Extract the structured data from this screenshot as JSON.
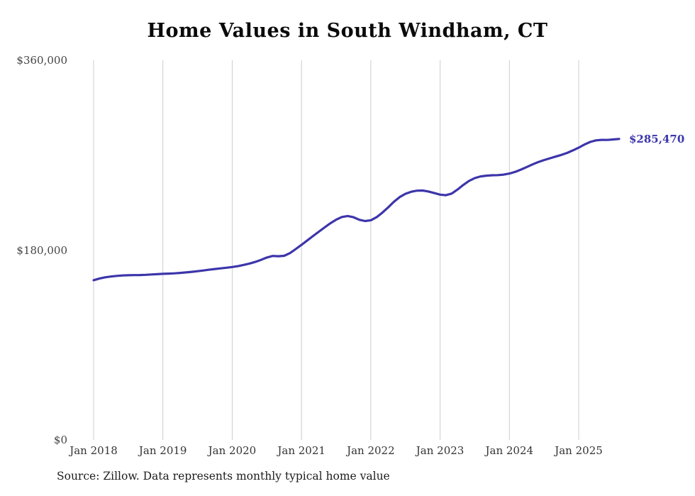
{
  "chart_data": {
    "type": "line",
    "title": "Home Values in South Windham, CT",
    "series_name": "Monthly typical home value",
    "x": [
      "2018-01",
      "2018-02",
      "2018-03",
      "2018-04",
      "2018-05",
      "2018-06",
      "2018-07",
      "2018-08",
      "2018-09",
      "2018-10",
      "2018-11",
      "2018-12",
      "2019-01",
      "2019-02",
      "2019-03",
      "2019-04",
      "2019-05",
      "2019-06",
      "2019-07",
      "2019-08",
      "2019-09",
      "2019-10",
      "2019-11",
      "2019-12",
      "2020-01",
      "2020-02",
      "2020-03",
      "2020-04",
      "2020-05",
      "2020-06",
      "2020-07",
      "2020-08",
      "2020-09",
      "2020-10",
      "2020-11",
      "2020-12",
      "2021-01",
      "2021-02",
      "2021-03",
      "2021-04",
      "2021-05",
      "2021-06",
      "2021-07",
      "2021-08",
      "2021-09",
      "2021-10",
      "2021-11",
      "2021-12",
      "2022-01",
      "2022-02",
      "2022-03",
      "2022-04",
      "2022-05",
      "2022-06",
      "2022-07",
      "2022-08",
      "2022-09",
      "2022-10",
      "2022-11",
      "2022-12",
      "2023-01",
      "2023-02",
      "2023-03",
      "2023-04",
      "2023-05",
      "2023-06",
      "2023-07",
      "2023-08",
      "2023-09",
      "2023-10",
      "2023-11",
      "2023-12",
      "2024-01",
      "2024-02",
      "2024-03",
      "2024-04",
      "2024-05",
      "2024-06",
      "2024-07",
      "2024-08",
      "2024-09",
      "2024-10",
      "2024-11",
      "2024-12",
      "2025-01",
      "2025-02",
      "2025-03",
      "2025-04",
      "2025-05",
      "2025-06",
      "2025-07",
      "2025-08"
    ],
    "values": [
      151500,
      153000,
      154200,
      155000,
      155600,
      156000,
      156200,
      156300,
      156400,
      156600,
      156900,
      157200,
      157500,
      157700,
      158000,
      158400,
      158900,
      159400,
      160000,
      160700,
      161400,
      162100,
      162700,
      163300,
      164000,
      164800,
      166000,
      167300,
      168800,
      170800,
      173000,
      174500,
      174200,
      174600,
      177200,
      181000,
      185000,
      189200,
      193400,
      197500,
      201500,
      205500,
      208900,
      211400,
      212400,
      211200,
      208800,
      207600,
      208300,
      211200,
      215500,
      220500,
      225800,
      230300,
      233400,
      235400,
      236400,
      236500,
      235600,
      234100,
      232600,
      232100,
      233600,
      237400,
      241700,
      245600,
      248300,
      249900,
      250600,
      251000,
      251100,
      251600,
      252600,
      254200,
      256400,
      258800,
      261300,
      263500,
      265400,
      267100,
      268700,
      270300,
      272200,
      274600,
      277200,
      280100,
      282600,
      284100,
      284600,
      284500,
      285000,
      285470
    ],
    "ylim": [
      0,
      360000
    ],
    "y_ticks": [
      0,
      180000,
      360000
    ],
    "y_tick_labels": [
      "$0",
      "$180,000",
      "$360,000"
    ],
    "x_tick_positions": [
      0,
      12,
      24,
      36,
      48,
      60,
      72,
      84
    ],
    "x_tick_labels": [
      "Jan 2018",
      "Jan 2019",
      "Jan 2020",
      "Jan 2021",
      "Jan 2022",
      "Jan 2023",
      "Jan 2024",
      "Jan 2025"
    ],
    "end_label": "$285,470",
    "line_color": "#3c35aa",
    "grid_color": "#cccccc",
    "grid": "vertical-only",
    "legend": "none",
    "source": "Source: Zillow. Data represents monthly typical home value"
  }
}
